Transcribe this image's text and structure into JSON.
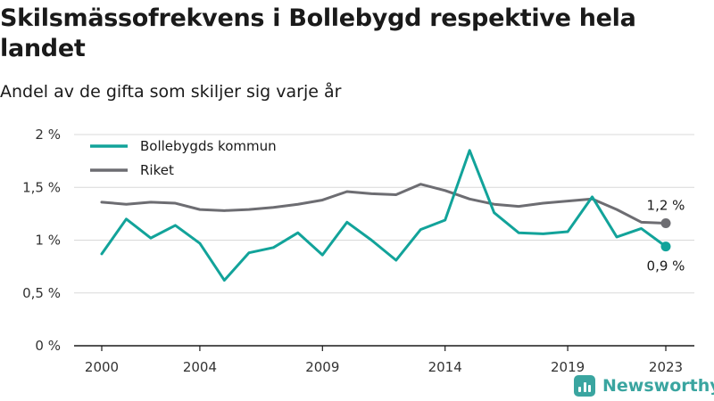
{
  "title": "Skilsmässofrekvens i Bollebygd respektive hela landet",
  "subtitle": "Andel av de gifta som skiljer sig varje år",
  "brand": {
    "name": "Newsworthy",
    "icon": "newsworthy-logo-icon",
    "color": "#3aa5a0"
  },
  "chart_data": {
    "type": "line",
    "x": [
      2000,
      2001,
      2002,
      2003,
      2004,
      2005,
      2006,
      2007,
      2008,
      2009,
      2010,
      2011,
      2012,
      2013,
      2014,
      2015,
      2016,
      2017,
      2018,
      2019,
      2020,
      2021,
      2022,
      2023
    ],
    "x_tick_labels": [
      "2000",
      "2004",
      "2009",
      "2014",
      "2019",
      "2023"
    ],
    "y_ticks": [
      0,
      0.5,
      1,
      1.5,
      2
    ],
    "y_tick_labels": [
      "0 %",
      "0,5 %",
      "1 %",
      "1,5 %",
      "2 %"
    ],
    "ylim": [
      0,
      2
    ],
    "grid": true,
    "legend_position": "top-left",
    "series": [
      {
        "name": "Bollebygds kommun",
        "color": "#12a39a",
        "values": [
          0.87,
          1.2,
          1.02,
          1.14,
          0.97,
          0.62,
          0.88,
          0.93,
          1.07,
          0.86,
          1.17,
          1.0,
          0.81,
          1.1,
          1.19,
          1.85,
          1.26,
          1.07,
          1.06,
          1.08,
          1.41,
          1.03,
          1.11,
          0.94
        ],
        "end_label": "0,9 %"
      },
      {
        "name": "Riket",
        "color": "#6d6d72",
        "values": [
          1.36,
          1.34,
          1.36,
          1.35,
          1.29,
          1.28,
          1.29,
          1.31,
          1.34,
          1.38,
          1.46,
          1.44,
          1.43,
          1.53,
          1.47,
          1.39,
          1.34,
          1.32,
          1.35,
          1.37,
          1.39,
          1.29,
          1.17,
          1.16
        ],
        "end_label": "1,2 %"
      }
    ]
  }
}
